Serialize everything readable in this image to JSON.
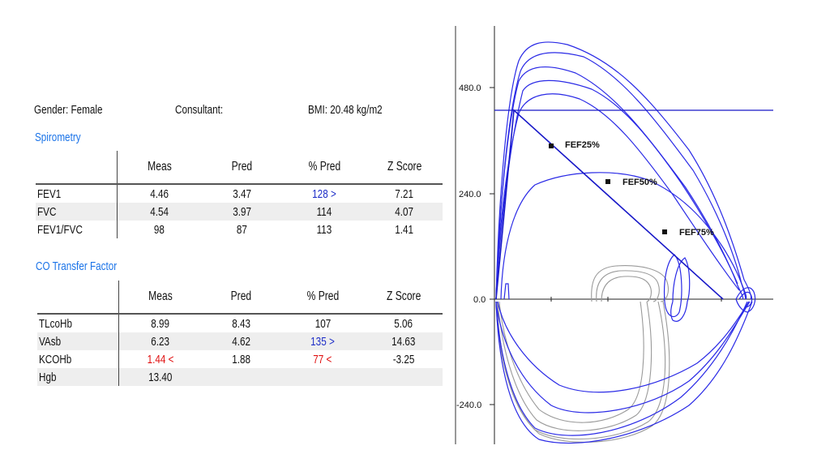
{
  "header": {
    "gender": "Gender: Female",
    "consultant": "Consultant:",
    "bmi": "BMI: 20.48 kg/m2"
  },
  "spirometry": {
    "title": "Spirometry",
    "columns": [
      "Meas",
      "Pred",
      "% Pred",
      "Z Score"
    ],
    "rows": [
      {
        "label": "FEV1",
        "meas": "4.46",
        "pred": "3.47",
        "pct": "128 >",
        "z": "7.21",
        "pct_color": "#2030c8"
      },
      {
        "label": "FVC",
        "meas": "4.54",
        "pred": "3.97",
        "pct": "114",
        "z": "4.07"
      },
      {
        "label": "FEV1/FVC",
        "meas": "98",
        "pred": "87",
        "pct": "113",
        "z": "1.41"
      }
    ]
  },
  "co_transfer": {
    "title": "CO Transfer Factor",
    "columns": [
      "Meas",
      "Pred",
      "% Pred",
      "Z Score"
    ],
    "rows": [
      {
        "label": "TLcoHb",
        "meas": "8.99",
        "pred": "8.43",
        "pct": "107",
        "z": "5.06"
      },
      {
        "label": "VAsb",
        "meas": "6.23",
        "pred": "4.62",
        "pct": "135 >",
        "z": "14.63",
        "pct_color": "#2030c8"
      },
      {
        "label": "KCOHb",
        "meas": "1.44 <",
        "pred": "1.88",
        "pct": "77 <",
        "z": "-3.25",
        "meas_color": "#e01010",
        "pct_color": "#e01010"
      },
      {
        "label": "Hgb",
        "meas": "13.40",
        "pred": "",
        "pct": "",
        "z": ""
      }
    ]
  },
  "flow_volume": {
    "y_ticks": [
      "480.0",
      "240.0",
      "0.0",
      "-240.0"
    ],
    "markers": [
      "FEF25%",
      "FEF50%",
      "FEF75%"
    ],
    "colors": {
      "measured": "#2a2ae6",
      "baseline": "#909090",
      "predicted": "#1818c8"
    }
  }
}
